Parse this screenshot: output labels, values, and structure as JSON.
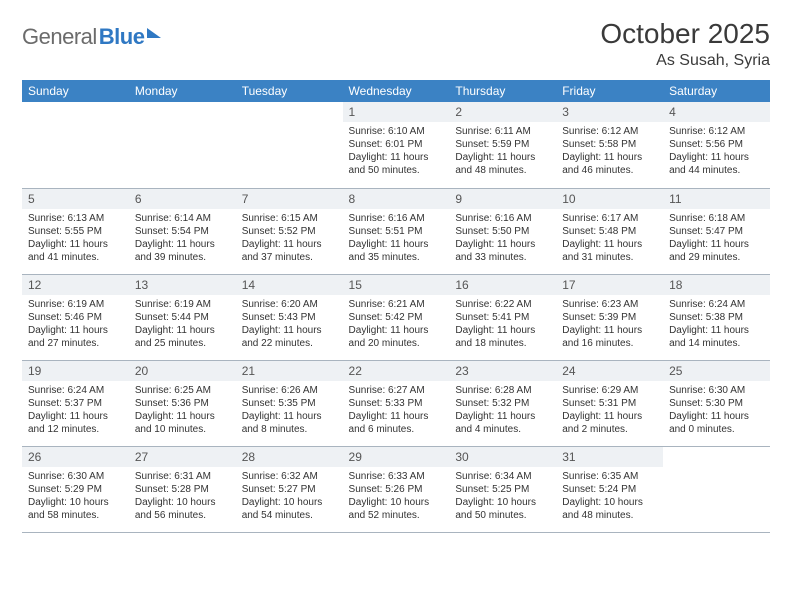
{
  "logo": {
    "part1": "General",
    "part2": "Blue"
  },
  "title": "October 2025",
  "location": "As Susah, Syria",
  "colors": {
    "header_bg": "#3b82c4",
    "header_text": "#ffffff",
    "daynum_bg": "#eef1f4",
    "border": "#a9b4bf",
    "logo_grey": "#6b6b6b",
    "logo_blue": "#2f78c3"
  },
  "weekdays": [
    "Sunday",
    "Monday",
    "Tuesday",
    "Wednesday",
    "Thursday",
    "Friday",
    "Saturday"
  ],
  "rows": [
    [
      {
        "n": "",
        "lines": []
      },
      {
        "n": "",
        "lines": []
      },
      {
        "n": "",
        "lines": []
      },
      {
        "n": "1",
        "lines": [
          "Sunrise: 6:10 AM",
          "Sunset: 6:01 PM",
          "Daylight: 11 hours",
          "and 50 minutes."
        ]
      },
      {
        "n": "2",
        "lines": [
          "Sunrise: 6:11 AM",
          "Sunset: 5:59 PM",
          "Daylight: 11 hours",
          "and 48 minutes."
        ]
      },
      {
        "n": "3",
        "lines": [
          "Sunrise: 6:12 AM",
          "Sunset: 5:58 PM",
          "Daylight: 11 hours",
          "and 46 minutes."
        ]
      },
      {
        "n": "4",
        "lines": [
          "Sunrise: 6:12 AM",
          "Sunset: 5:56 PM",
          "Daylight: 11 hours",
          "and 44 minutes."
        ]
      }
    ],
    [
      {
        "n": "5",
        "lines": [
          "Sunrise: 6:13 AM",
          "Sunset: 5:55 PM",
          "Daylight: 11 hours",
          "and 41 minutes."
        ]
      },
      {
        "n": "6",
        "lines": [
          "Sunrise: 6:14 AM",
          "Sunset: 5:54 PM",
          "Daylight: 11 hours",
          "and 39 minutes."
        ]
      },
      {
        "n": "7",
        "lines": [
          "Sunrise: 6:15 AM",
          "Sunset: 5:52 PM",
          "Daylight: 11 hours",
          "and 37 minutes."
        ]
      },
      {
        "n": "8",
        "lines": [
          "Sunrise: 6:16 AM",
          "Sunset: 5:51 PM",
          "Daylight: 11 hours",
          "and 35 minutes."
        ]
      },
      {
        "n": "9",
        "lines": [
          "Sunrise: 6:16 AM",
          "Sunset: 5:50 PM",
          "Daylight: 11 hours",
          "and 33 minutes."
        ]
      },
      {
        "n": "10",
        "lines": [
          "Sunrise: 6:17 AM",
          "Sunset: 5:48 PM",
          "Daylight: 11 hours",
          "and 31 minutes."
        ]
      },
      {
        "n": "11",
        "lines": [
          "Sunrise: 6:18 AM",
          "Sunset: 5:47 PM",
          "Daylight: 11 hours",
          "and 29 minutes."
        ]
      }
    ],
    [
      {
        "n": "12",
        "lines": [
          "Sunrise: 6:19 AM",
          "Sunset: 5:46 PM",
          "Daylight: 11 hours",
          "and 27 minutes."
        ]
      },
      {
        "n": "13",
        "lines": [
          "Sunrise: 6:19 AM",
          "Sunset: 5:44 PM",
          "Daylight: 11 hours",
          "and 25 minutes."
        ]
      },
      {
        "n": "14",
        "lines": [
          "Sunrise: 6:20 AM",
          "Sunset: 5:43 PM",
          "Daylight: 11 hours",
          "and 22 minutes."
        ]
      },
      {
        "n": "15",
        "lines": [
          "Sunrise: 6:21 AM",
          "Sunset: 5:42 PM",
          "Daylight: 11 hours",
          "and 20 minutes."
        ]
      },
      {
        "n": "16",
        "lines": [
          "Sunrise: 6:22 AM",
          "Sunset: 5:41 PM",
          "Daylight: 11 hours",
          "and 18 minutes."
        ]
      },
      {
        "n": "17",
        "lines": [
          "Sunrise: 6:23 AM",
          "Sunset: 5:39 PM",
          "Daylight: 11 hours",
          "and 16 minutes."
        ]
      },
      {
        "n": "18",
        "lines": [
          "Sunrise: 6:24 AM",
          "Sunset: 5:38 PM",
          "Daylight: 11 hours",
          "and 14 minutes."
        ]
      }
    ],
    [
      {
        "n": "19",
        "lines": [
          "Sunrise: 6:24 AM",
          "Sunset: 5:37 PM",
          "Daylight: 11 hours",
          "and 12 minutes."
        ]
      },
      {
        "n": "20",
        "lines": [
          "Sunrise: 6:25 AM",
          "Sunset: 5:36 PM",
          "Daylight: 11 hours",
          "and 10 minutes."
        ]
      },
      {
        "n": "21",
        "lines": [
          "Sunrise: 6:26 AM",
          "Sunset: 5:35 PM",
          "Daylight: 11 hours",
          "and 8 minutes."
        ]
      },
      {
        "n": "22",
        "lines": [
          "Sunrise: 6:27 AM",
          "Sunset: 5:33 PM",
          "Daylight: 11 hours",
          "and 6 minutes."
        ]
      },
      {
        "n": "23",
        "lines": [
          "Sunrise: 6:28 AM",
          "Sunset: 5:32 PM",
          "Daylight: 11 hours",
          "and 4 minutes."
        ]
      },
      {
        "n": "24",
        "lines": [
          "Sunrise: 6:29 AM",
          "Sunset: 5:31 PM",
          "Daylight: 11 hours",
          "and 2 minutes."
        ]
      },
      {
        "n": "25",
        "lines": [
          "Sunrise: 6:30 AM",
          "Sunset: 5:30 PM",
          "Daylight: 11 hours",
          "and 0 minutes."
        ]
      }
    ],
    [
      {
        "n": "26",
        "lines": [
          "Sunrise: 6:30 AM",
          "Sunset: 5:29 PM",
          "Daylight: 10 hours",
          "and 58 minutes."
        ]
      },
      {
        "n": "27",
        "lines": [
          "Sunrise: 6:31 AM",
          "Sunset: 5:28 PM",
          "Daylight: 10 hours",
          "and 56 minutes."
        ]
      },
      {
        "n": "28",
        "lines": [
          "Sunrise: 6:32 AM",
          "Sunset: 5:27 PM",
          "Daylight: 10 hours",
          "and 54 minutes."
        ]
      },
      {
        "n": "29",
        "lines": [
          "Sunrise: 6:33 AM",
          "Sunset: 5:26 PM",
          "Daylight: 10 hours",
          "and 52 minutes."
        ]
      },
      {
        "n": "30",
        "lines": [
          "Sunrise: 6:34 AM",
          "Sunset: 5:25 PM",
          "Daylight: 10 hours",
          "and 50 minutes."
        ]
      },
      {
        "n": "31",
        "lines": [
          "Sunrise: 6:35 AM",
          "Sunset: 5:24 PM",
          "Daylight: 10 hours",
          "and 48 minutes."
        ]
      },
      {
        "n": "",
        "lines": []
      }
    ]
  ]
}
